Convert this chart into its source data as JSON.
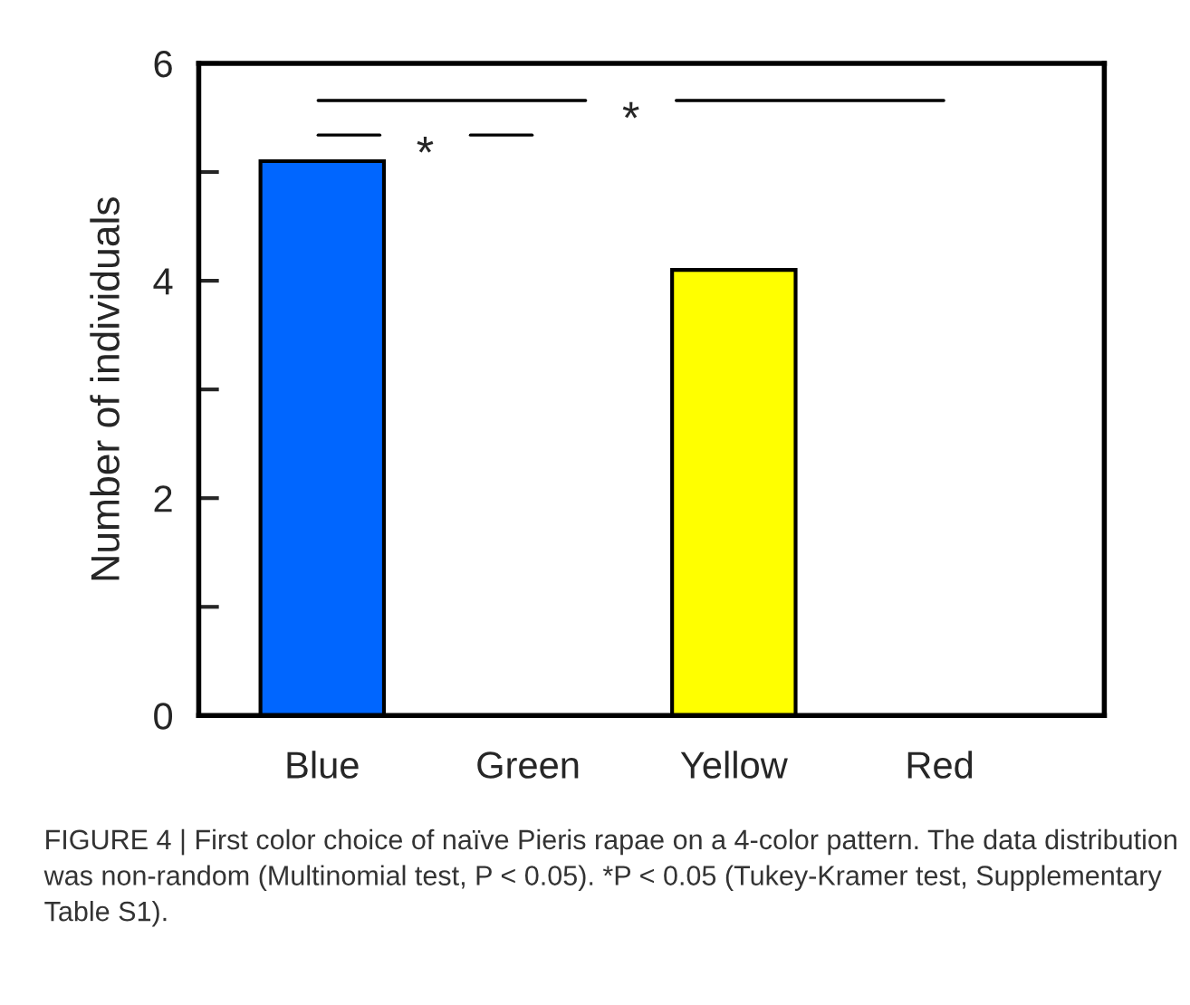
{
  "chart_data": {
    "type": "bar",
    "ylabel": "Number of individuals",
    "categories": [
      "Blue",
      "Green",
      "Yellow",
      "Red"
    ],
    "values": [
      5.1,
      0,
      4.1,
      0
    ],
    "colors": [
      "#0066ff",
      "#ffffff",
      "#ffff00",
      "#ffffff"
    ],
    "ylim": [
      0,
      6
    ],
    "yticks": [
      0,
      {
        "value": 1,
        "label": null
      },
      2,
      {
        "value": 3,
        "label": null
      },
      4,
      {
        "value": 5,
        "label": null
      },
      6
    ],
    "annotations": [
      "*",
      "*",
      "FIGURE 4 | First color choice of naïve Pieris rapae on a 4-color pattern. The data distribution was non-random (Multinomial test, P < 0.05). *P < 0.05 (Tukey-Kramer test, Supplementary Table S1)."
    ]
  }
}
